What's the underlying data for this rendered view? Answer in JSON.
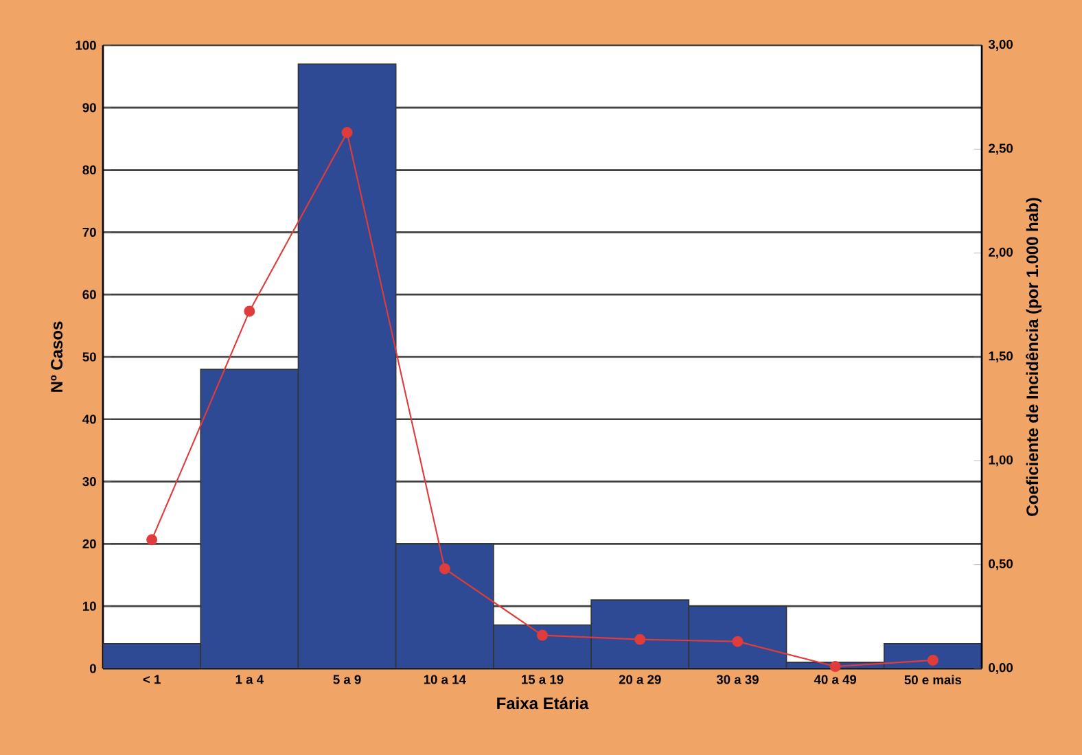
{
  "chart_data": {
    "type": "bar",
    "xlabel": "Faixa Etária",
    "ylabel": "Nº Casos",
    "y2label": "Coeficiente de Incidência (por 1.000 hab)",
    "categories": [
      "< 1",
      "1 a 4",
      "5 a 9",
      "10 a 14",
      "15 a 19",
      "20 a 29",
      "30 a 39",
      "40 a 49",
      "50 e mais"
    ],
    "series": [
      {
        "color": "#2e4a94",
        "values": [
          4,
          48,
          97,
          20,
          7,
          11,
          10,
          1,
          4
        ]
      },
      {
        "type": "line",
        "axis": "y2",
        "color": "#e03c3c",
        "marker": "circle",
        "line_style": "solid",
        "values": [
          0.62,
          1.72,
          2.58,
          0.48,
          0.16,
          0.14,
          0.13,
          0.01,
          0.04
        ]
      }
    ],
    "ylim": [
      0,
      100
    ],
    "yticks": [
      0,
      10,
      20,
      30,
      40,
      50,
      60,
      70,
      80,
      90,
      100
    ],
    "y2lim": [
      0,
      3
    ],
    "y2ticks": [
      {
        "value": 0,
        "label": "0,00"
      },
      {
        "value": 0.5,
        "label": "0,50"
      },
      {
        "value": 1,
        "label": "1,00"
      },
      {
        "value": 1.5,
        "label": "1,50"
      },
      {
        "value": 2,
        "label": "2,00"
      },
      {
        "value": 2.5,
        "label": "2,50"
      },
      {
        "value": 3,
        "label": "3,00"
      }
    ],
    "grid": "y"
  }
}
